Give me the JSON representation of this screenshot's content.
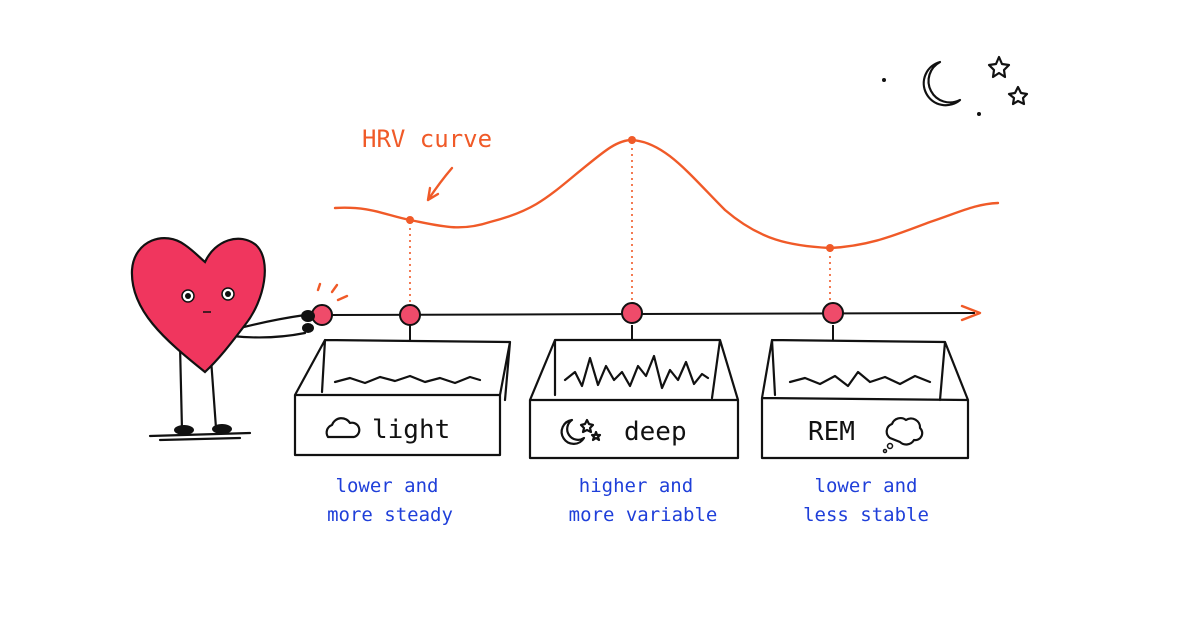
{
  "annotation": "HRV curve",
  "stages": [
    {
      "label": "light",
      "description": [
        "lower and",
        "more steady"
      ]
    },
    {
      "label": "deep",
      "description": [
        "higher and",
        "more variable"
      ]
    },
    {
      "label": "REM",
      "description": [
        "lower and",
        "less stable"
      ]
    }
  ]
}
